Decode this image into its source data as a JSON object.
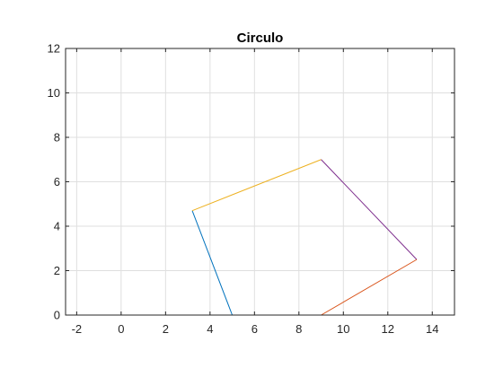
{
  "chart_data": {
    "type": "line",
    "title": "Circulo",
    "xlabel": "",
    "ylabel": "",
    "xlim": [
      -2.5,
      15
    ],
    "ylim": [
      0,
      12
    ],
    "xticks": [
      -2,
      0,
      2,
      4,
      6,
      8,
      10,
      12,
      14
    ],
    "yticks": [
      0,
      2,
      4,
      6,
      8,
      10,
      12
    ],
    "grid": true,
    "series": [
      {
        "color": "#0072BD",
        "x": [
          5.0,
          3.2
        ],
        "y": [
          0.0,
          4.7
        ]
      },
      {
        "color": "#EDB120",
        "x": [
          3.2,
          9.0
        ],
        "y": [
          4.7,
          7.0
        ]
      },
      {
        "color": "#7E2F8E",
        "x": [
          9.0,
          13.3
        ],
        "y": [
          7.0,
          2.5
        ]
      },
      {
        "color": "#D95319",
        "x": [
          13.3,
          9.0
        ],
        "y": [
          2.5,
          0.0
        ]
      }
    ]
  }
}
